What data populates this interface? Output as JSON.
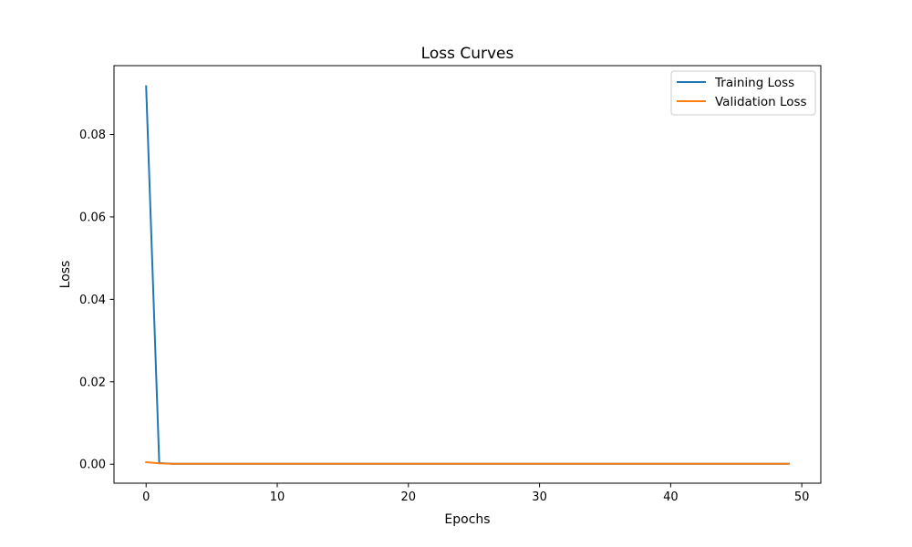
{
  "chart_data": {
    "type": "line",
    "title": "Loss Curves",
    "xlabel": "Epochs",
    "ylabel": "Loss",
    "xlim": [
      -2.45,
      51.45
    ],
    "ylim": [
      -0.0046,
      0.0967
    ],
    "xticks": [
      0,
      10,
      20,
      30,
      40,
      50
    ],
    "yticks": [
      0.0,
      0.02,
      0.04,
      0.06,
      0.08
    ],
    "ytick_labels": [
      "0.00",
      "0.02",
      "0.04",
      "0.06",
      "0.08"
    ],
    "grid": false,
    "legend_position": "top-right",
    "x": [
      0,
      1,
      2,
      3,
      4,
      5,
      6,
      7,
      8,
      9,
      10,
      11,
      12,
      13,
      14,
      15,
      16,
      17,
      18,
      19,
      20,
      21,
      22,
      23,
      24,
      25,
      26,
      27,
      28,
      29,
      30,
      31,
      32,
      33,
      34,
      35,
      36,
      37,
      38,
      39,
      40,
      41,
      42,
      43,
      44,
      45,
      46,
      47,
      48,
      49
    ],
    "series": [
      {
        "name": "Training Loss",
        "color": "#1f77b4",
        "values": [
          0.0917,
          0.0003,
          0.0001,
          0.0001,
          0.0001,
          0.0001,
          0.0001,
          0.0001,
          0.0001,
          0.0001,
          0.0001,
          0.0001,
          0.0001,
          0.0001,
          0.0001,
          0.0001,
          0.0001,
          0.0001,
          0.0001,
          0.0001,
          0.0001,
          0.0001,
          0.0001,
          0.0001,
          0.0001,
          0.0001,
          0.0001,
          0.0001,
          0.0001,
          0.0001,
          0.0001,
          0.0001,
          0.0001,
          0.0001,
          0.0001,
          0.0001,
          0.0001,
          0.0001,
          0.0001,
          0.0001,
          0.0001,
          0.0001,
          0.0001,
          0.0001,
          0.0001,
          0.0001,
          0.0001,
          0.0001,
          0.0001,
          0.0001
        ]
      },
      {
        "name": "Validation Loss",
        "color": "#ff7f0e",
        "values": [
          0.0005,
          0.0002,
          0.0001,
          0.0001,
          0.0001,
          0.0001,
          0.0001,
          0.0001,
          0.0001,
          0.0001,
          0.0001,
          0.0001,
          0.0001,
          0.0001,
          0.0001,
          0.0001,
          0.0001,
          0.0001,
          0.0001,
          0.0001,
          0.0001,
          0.0001,
          0.0001,
          0.0001,
          0.0001,
          0.0001,
          0.0001,
          0.0001,
          0.0001,
          0.0001,
          0.0001,
          0.0001,
          0.0001,
          0.0001,
          0.0001,
          0.0001,
          0.0001,
          0.0001,
          0.0001,
          0.0001,
          0.0001,
          0.0001,
          0.0001,
          0.0001,
          0.0001,
          0.0001,
          0.0001,
          0.0001,
          0.0001,
          0.0001
        ]
      }
    ]
  }
}
